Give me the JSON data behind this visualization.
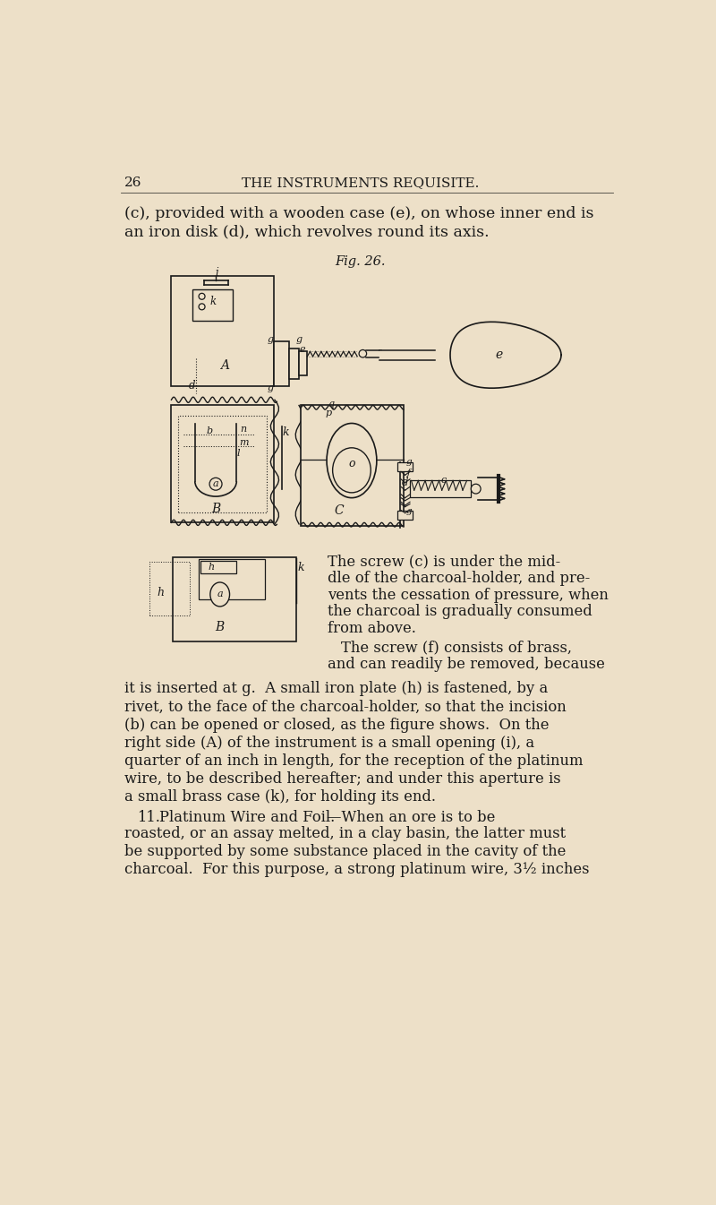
{
  "bg_color": "#ede0c8",
  "text_color": "#1a1a1a",
  "page_number": "26",
  "header": "THE INSTRUMENTS REQUISITE.",
  "line1": "(c), provided with a wooden case (e), on whose inner end is",
  "line2": "an iron disk (d), which revolves round its axis.",
  "fig_caption": "Fig. 26.",
  "para1_line1": "The screw (c) is under the mid-",
  "para1_line2": "dle of the charcoal-holder, and pre-",
  "para1_line3": "vents the cessation of pressure, when",
  "para1_line4": "the charcoal is gradually consumed",
  "para1_line5": "from above.",
  "para2_line1": "The screw (f) consists of brass,",
  "para2_line2": "and can readily be removed, because",
  "body_lines": [
    "it is inserted at g.  A small iron plate (h) is fastened, by a",
    "rivet, to the face of the charcoal-holder, so that the incision",
    "(b) can be opened or closed, as the figure shows.  On the",
    "right side (A) of the instrument is a small opening (i), a",
    "quarter of an inch in length, for the reception of the platinum",
    "wire, to be described hereafter; and under this aperture is",
    "a small brass case (k), for holding its end."
  ],
  "section11_num": "11.",
  "section11_head": "Platinum Wire and Foil.",
  "section11_rest": "—When an ore is to be",
  "section11_lines": [
    "roasted, or an assay melted, in a clay basin, the latter must",
    "be supported by some substance placed in the cavity of the",
    "charcoal.  For this purpose, a strong platinum wire, 3½ inches"
  ]
}
